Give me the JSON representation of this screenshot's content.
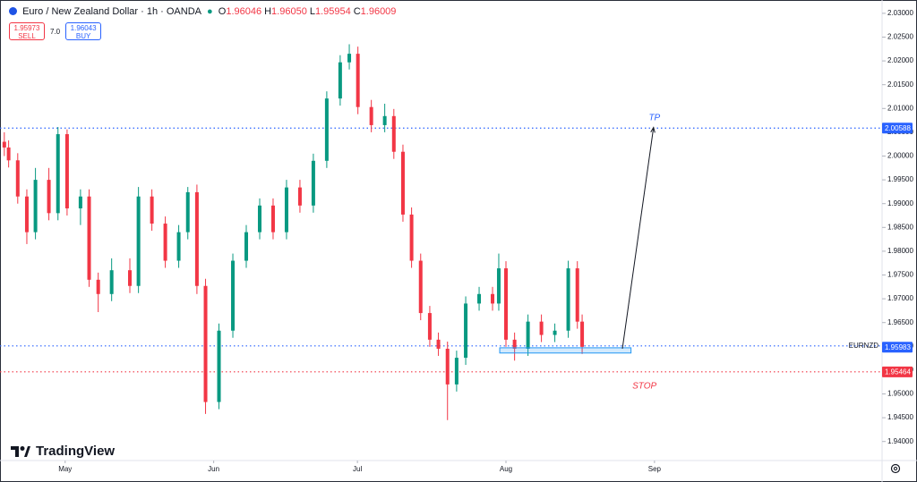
{
  "header": {
    "title": "Euro / New Zealand Dollar · 1h · OANDA",
    "ohlc": [
      {
        "key": "O",
        "value": "1.96046"
      },
      {
        "key": "H",
        "value": "1.96050"
      },
      {
        "key": "L",
        "value": "1.95954"
      },
      {
        "key": "C",
        "value": "1.96009"
      }
    ],
    "sell_price": "1.95973",
    "sell": "SELL",
    "spread": "7.0",
    "buy_price": "1.96043",
    "buy": "BUY"
  },
  "logo": "TradingView",
  "chart_data": {
    "type": "candlestick",
    "x": [
      -12.7,
      -11.8,
      -9.9,
      -8.0,
      -6.2,
      -3.4,
      -1.5,
      0.4,
      3.2,
      5.0,
      6.9,
      9.7,
      13.5,
      15.3,
      18.1,
      20.9,
      23.7,
      25.6,
      27.5,
      29.3,
      32.1,
      35.0,
      37.8,
      40.6,
      43.4,
      46.2,
      49.0,
      51.8,
      54.6,
      57.4,
      59.3,
      61.1,
      63.9,
      66.7,
      68.6,
      70.5,
      72.3,
      74.2,
      76.1,
      77.9,
      79.8,
      81.7,
      83.6,
      86.4,
      89.2,
      90.5,
      92.0,
      93.8,
      96.6,
      99.4,
      102.2,
      105.0,
      106.9,
      107.9
    ],
    "open": [
      2.003,
      2.0018,
      1.9991,
      1.9915,
      1.984,
      1.995,
      1.988,
      2.0046,
      1.989,
      1.9915,
      1.974,
      1.971,
      1.976,
      1.9727,
      1.9915,
      1.9858,
      1.978,
      1.984,
      1.9924,
      1.9727,
      1.9483,
      1.9633,
      1.978,
      1.984,
      1.9896,
      1.984,
      1.9934,
      1.9896,
      1.999,
      2.0121,
      2.0197,
      2.0215,
      2.0103,
      2.0065,
      2.0084,
      2.0009,
      1.9877,
      1.978,
      1.967,
      1.9614,
      1.9595,
      1.952,
      1.9576,
      1.969,
      1.971,
      1.969,
      1.9764,
      1.9614,
      1.9595,
      1.9652,
      1.9624,
      1.9633,
      1.9764,
      1.9652
    ],
    "high": [
      2.005,
      2.0033,
      2.0006,
      1.993,
      1.9975,
      1.9975,
      2.0061,
      2.0056,
      1.993,
      1.993,
      1.9755,
      1.9785,
      1.9785,
      1.9935,
      1.993,
      1.9873,
      1.9855,
      1.9935,
      1.994,
      1.9742,
      1.9648,
      1.9795,
      1.9855,
      1.9911,
      1.9911,
      1.995,
      1.995,
      2.0005,
      2.0136,
      2.0212,
      2.0235,
      2.023,
      2.0118,
      2.011,
      2.0099,
      2.0024,
      1.9892,
      1.9795,
      1.9685,
      1.9629,
      1.961,
      1.9591,
      1.9705,
      1.9725,
      1.9725,
      1.9795,
      1.9779,
      1.9629,
      1.9667,
      1.9667,
      1.9648,
      1.978,
      1.9779,
      1.9667
    ],
    "low": [
      2.0,
      1.9976,
      1.99,
      1.9815,
      1.9825,
      1.9865,
      1.9865,
      1.9875,
      1.9855,
      1.9725,
      1.9672,
      1.9695,
      1.9712,
      1.9712,
      1.9843,
      1.9765,
      1.9765,
      1.9825,
      1.971,
      1.9458,
      1.9468,
      1.9618,
      1.9765,
      1.9825,
      1.9825,
      1.9825,
      1.9881,
      1.9881,
      1.9975,
      2.0106,
      2.0182,
      2.0088,
      2.005,
      2.005,
      1.9994,
      1.9862,
      1.9765,
      1.9655,
      1.9599,
      1.958,
      1.9445,
      1.9505,
      1.9561,
      1.9675,
      1.9675,
      1.9675,
      1.9599,
      1.957,
      1.958,
      1.9609,
      1.9609,
      1.9618,
      1.9637,
      1.9584
    ],
    "close": [
      2.0018,
      1.9991,
      1.9915,
      1.984,
      1.995,
      1.988,
      2.0046,
      1.989,
      1.9915,
      1.974,
      1.971,
      1.976,
      1.9727,
      1.9915,
      1.9858,
      1.978,
      1.984,
      1.9924,
      1.9727,
      1.9483,
      1.9633,
      1.978,
      1.984,
      1.9896,
      1.984,
      1.9934,
      1.9896,
      1.999,
      2.0121,
      2.0197,
      2.0215,
      2.0103,
      2.0065,
      2.0084,
      2.0009,
      1.9877,
      1.978,
      1.967,
      1.9614,
      1.9595,
      1.952,
      1.9576,
      1.969,
      1.971,
      1.969,
      1.9764,
      1.9614,
      1.9595,
      1.9652,
      1.9624,
      1.9633,
      1.9764,
      1.9652,
      1.9599
    ],
    "up_color": "#089981",
    "down_color": "#f23645",
    "xlim": [
      -13.6,
      170.5
    ],
    "xticks": [
      {
        "value": 0,
        "label": "May"
      },
      {
        "value": 31,
        "label": "Jun"
      },
      {
        "value": 61,
        "label": "Jul"
      },
      {
        "value": 92,
        "label": "Aug"
      },
      {
        "value": 123,
        "label": "Sep"
      }
    ],
    "ylim": [
      1.936,
      2.0328
    ],
    "yticks": [
      {
        "value": 2.03,
        "label": "2.03000"
      },
      {
        "value": 2.025,
        "label": "2.02500"
      },
      {
        "value": 2.02,
        "label": "2.02000"
      },
      {
        "value": 2.015,
        "label": "2.01500"
      },
      {
        "value": 2.01,
        "label": "2.01000"
      },
      {
        "value": 2.005,
        "label": "2.00500"
      },
      {
        "value": 2.0,
        "label": "2.00000"
      },
      {
        "value": 1.995,
        "label": "1.99500"
      },
      {
        "value": 1.99,
        "label": "1.99000"
      },
      {
        "value": 1.985,
        "label": "1.98500"
      },
      {
        "value": 1.98,
        "label": "1.98000"
      },
      {
        "value": 1.975,
        "label": "1.97500"
      },
      {
        "value": 1.97,
        "label": "1.97000"
      },
      {
        "value": 1.965,
        "label": "1.96500"
      },
      {
        "value": 1.96,
        "label": "1.96000"
      },
      {
        "value": 1.955,
        "label": "1.95500"
      },
      {
        "value": 1.95,
        "label": "1.95000"
      },
      {
        "value": 1.945,
        "label": "1.94500"
      },
      {
        "value": 1.94,
        "label": "1.94000"
      }
    ],
    "price_lines": [
      {
        "value": 2.00588,
        "color": "#2962ff",
        "line": true,
        "tag": true
      },
      {
        "value": 1.96009,
        "name": "EURNZD",
        "color": "#2962ff",
        "line": true,
        "tag": false
      },
      {
        "value": 1.95983,
        "color": "#2962ff",
        "line": false,
        "tag": true
      },
      {
        "value": 1.95464,
        "color": "#f23645",
        "line": true,
        "tag": true
      }
    ],
    "zone": {
      "x": [
        90.7,
        118.1
      ],
      "y": [
        1.9586,
        1.9597
      ],
      "color": "#2196f3"
    },
    "arrow": {
      "x": [
        116.3,
        122.8
      ],
      "y": [
        1.9595,
        2.006
      ],
      "color": "#131722"
    },
    "annotations": [
      {
        "text": "TP",
        "x": 123,
        "y": 2.008,
        "color": "#2962ff"
      },
      {
        "text": "STOP",
        "x": 120.9,
        "y": 1.9516,
        "color": "#f23645"
      }
    ]
  }
}
